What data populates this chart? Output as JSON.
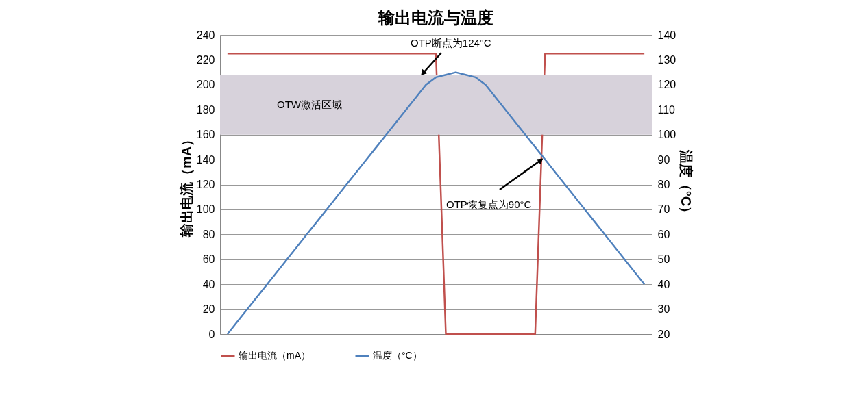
{
  "chart_data": {
    "type": "line",
    "title": "输出电流与温度",
    "categories": [
      null,
      null,
      null,
      null,
      null,
      null,
      null,
      null,
      null,
      null,
      null,
      null,
      null,
      null,
      null,
      null,
      null,
      null,
      null,
      null,
      null,
      null,
      null,
      null,
      null,
      null,
      null,
      null,
      null,
      null,
      null,
      null,
      null,
      null,
      null,
      null,
      null,
      null,
      null,
      null,
      null,
      null,
      null
    ],
    "series": [
      {
        "name": "输出电流（mA）",
        "color": "#c0504d",
        "values": [
          225,
          225,
          225,
          225,
          225,
          225,
          225,
          225,
          225,
          225,
          225,
          225,
          225,
          225,
          225,
          225,
          225,
          225,
          225,
          225,
          225,
          225,
          0,
          0,
          0,
          0,
          0,
          0,
          0,
          0,
          0,
          0,
          225,
          225,
          225,
          225,
          225,
          225,
          225,
          225,
          225,
          225,
          225
        ]
      },
      {
        "name": "温度（°C）",
        "color": "#4f81bd",
        "axis": "y2",
        "values": [
          20,
          25,
          30,
          35,
          40,
          45,
          50,
          55,
          60,
          65,
          70,
          75,
          80,
          85,
          90,
          95,
          100,
          105,
          110,
          115,
          120,
          123,
          124,
          125,
          124,
          123,
          120,
          115,
          110,
          105,
          100,
          95,
          90,
          85,
          80,
          75,
          70,
          65,
          60,
          55,
          50,
          45,
          40
        ]
      }
    ],
    "ylabel": "输出电流（mA）",
    "y2label": "温度（°C）",
    "ylim": [
      0,
      240
    ],
    "yticks": [
      0,
      20,
      40,
      60,
      80,
      100,
      120,
      140,
      160,
      180,
      200,
      220,
      240
    ],
    "y2lim": [
      20,
      140
    ],
    "y2ticks": [
      20,
      30,
      40,
      50,
      60,
      70,
      80,
      90,
      100,
      110,
      120,
      130,
      140
    ],
    "bands": [
      {
        "axis": "y2",
        "from": 100,
        "to": 124,
        "label": "OTW激活区域",
        "color": "#d7d2db"
      }
    ],
    "annotations": [
      "OTP断点为124°C",
      "OTP恢复点为90°C"
    ],
    "grid": "y",
    "legend": "bottom",
    "marker": "none",
    "line_style": "solid"
  }
}
